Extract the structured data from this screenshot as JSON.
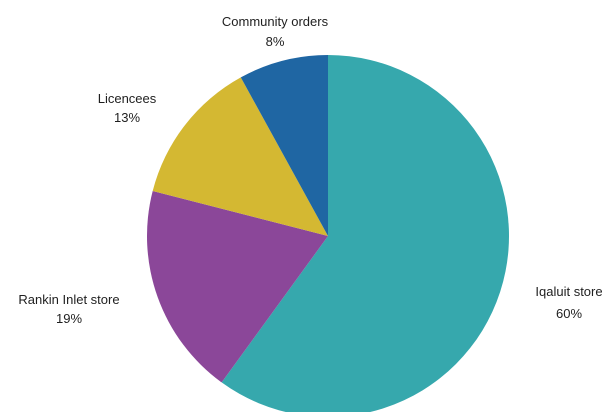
{
  "chart_data": {
    "type": "pie",
    "start_angle": "12 o'clock",
    "direction": "clockwise",
    "slices": [
      {
        "label": "Iqaluit store",
        "value": 60,
        "pct_label": "60%",
        "color": "#36a8ad"
      },
      {
        "label": "Rankin Inlet store",
        "value": 19,
        "pct_label": "19%",
        "color": "#8b4799"
      },
      {
        "label": "Licencees",
        "value": 13,
        "pct_label": "13%",
        "color": "#d4b832"
      },
      {
        "label": "Community orders",
        "value": 8,
        "pct_label": "8%",
        "color": "#1f66a3"
      }
    ]
  }
}
